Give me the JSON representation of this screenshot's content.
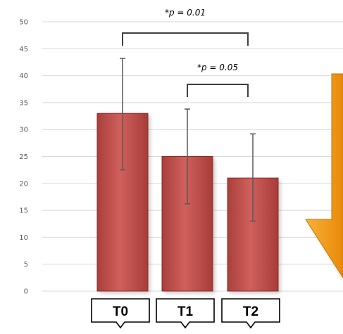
{
  "chart_data": {
    "type": "bar",
    "categories": [
      "T0",
      "T1",
      "T2"
    ],
    "values": [
      33,
      25,
      21
    ],
    "error_bars": [
      {
        "low": 22.5,
        "high": 43.2
      },
      {
        "low": 16.2,
        "high": 33.8
      },
      {
        "low": 13.0,
        "high": 29.2
      }
    ],
    "title": "",
    "xlabel": "",
    "ylabel": "",
    "ylim": [
      0,
      50
    ],
    "yticks": [
      0,
      5,
      10,
      15,
      20,
      25,
      30,
      35,
      40,
      45,
      50
    ],
    "grid": true,
    "bar_color": "#c0504d",
    "annotations": [
      {
        "text": "*p = 0.01",
        "from": "T0",
        "to": "T2"
      },
      {
        "text": "*p = 0.05",
        "from": "T1",
        "to": "T2"
      }
    ],
    "arrow": {
      "direction": "down",
      "color": "#f39c12"
    }
  }
}
